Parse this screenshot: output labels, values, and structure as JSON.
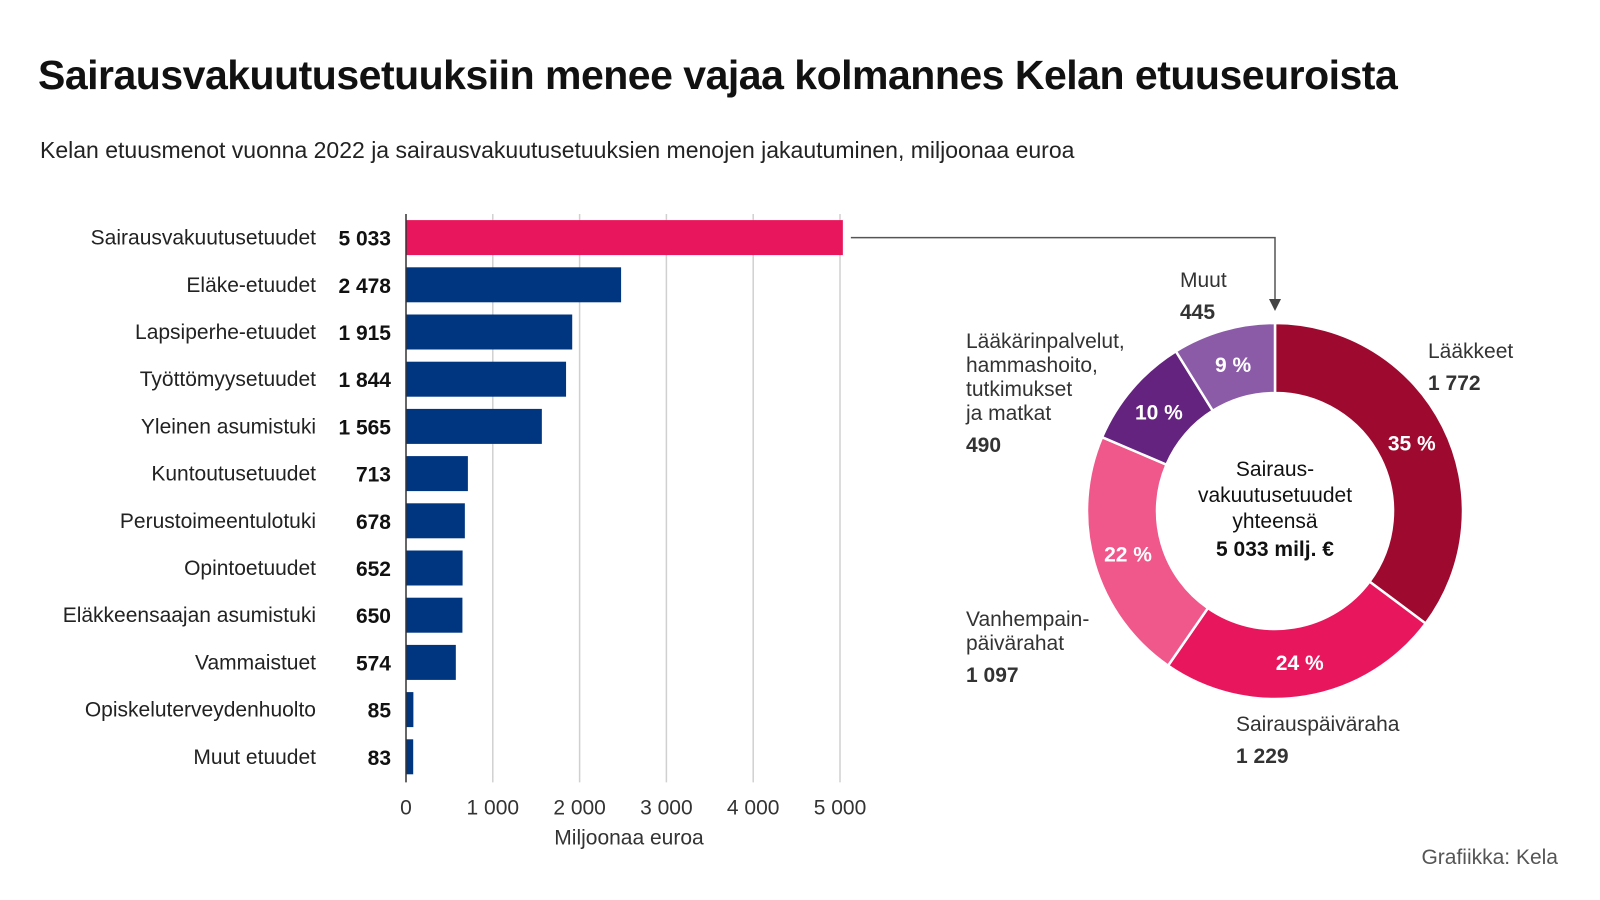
{
  "title": "Sairausvakuutusetuuksiin menee vajaa kolmannes Kelan etuuseuroista",
  "subtitle": "Kelan etuusmenot vuonna 2022 ja sairausvakuutusetuuksien menojen jakautuminen, miljoonaa euroa",
  "credit": "Grafiikka: Kela",
  "colors": {
    "highlight": "#e8175d",
    "bar": "#003580",
    "grid": "#d0d0d0",
    "pie": [
      "#9e0a2f",
      "#e8175d",
      "#f0578a",
      "#64237f",
      "#8c5ba8"
    ]
  },
  "chart_data": [
    {
      "type": "bar",
      "orientation": "horizontal",
      "categories": [
        "Sairausvakuutusetuudet",
        "Eläke-etuudet",
        "Lapsiperhe-etuudet",
        "Työttömyysetuudet",
        "Yleinen asumistuki",
        "Kuntoutusetuudet",
        "Perustoimeentulotuki",
        "Opintoetuudet",
        "Eläkkeensaajan asumistuki",
        "Vammaistuet",
        "Opiskeluterveydenhuolto",
        "Muut etuudet"
      ],
      "values": [
        5033,
        2478,
        1915,
        1844,
        1565,
        713,
        678,
        652,
        650,
        574,
        85,
        83
      ],
      "value_labels": [
        "5 033",
        "2 478",
        "1 915",
        "1 844",
        "1 565",
        "713",
        "678",
        "652",
        "650",
        "574",
        "85",
        "83"
      ],
      "highlight_index": 0,
      "xlim": [
        0,
        5000
      ],
      "xticks": [
        0,
        1000,
        2000,
        3000,
        4000,
        5000
      ],
      "xtick_labels": [
        "0",
        "1 000",
        "2 000",
        "3 000",
        "4 000",
        "5 000"
      ],
      "xlabel": "Miljoonaa euroa",
      "grid": true
    },
    {
      "type": "pie",
      "donut": true,
      "center_label": [
        "Sairaus-",
        "vakuutusetuudet",
        "yhteensä"
      ],
      "center_total": "5 033 milj. €",
      "slices": [
        {
          "label": [
            "Lääkkeet"
          ],
          "value": 1772,
          "value_label": "1 772",
          "percent": "35 %"
        },
        {
          "label": [
            "Sairauspäiväraha"
          ],
          "value": 1229,
          "value_label": "1 229",
          "percent": "24 %"
        },
        {
          "label": [
            "Vanhempain-",
            "päivärahat"
          ],
          "value": 1097,
          "value_label": "1 097",
          "percent": "22 %"
        },
        {
          "label": [
            "Lääkärinpalvelut,",
            "hammashoito,",
            "tutkimukset",
            "ja matkat"
          ],
          "value": 490,
          "value_label": "490",
          "percent": "10 %"
        },
        {
          "label": [
            "Muut"
          ],
          "value": 445,
          "value_label": "445",
          "percent": "9 %"
        }
      ]
    }
  ]
}
